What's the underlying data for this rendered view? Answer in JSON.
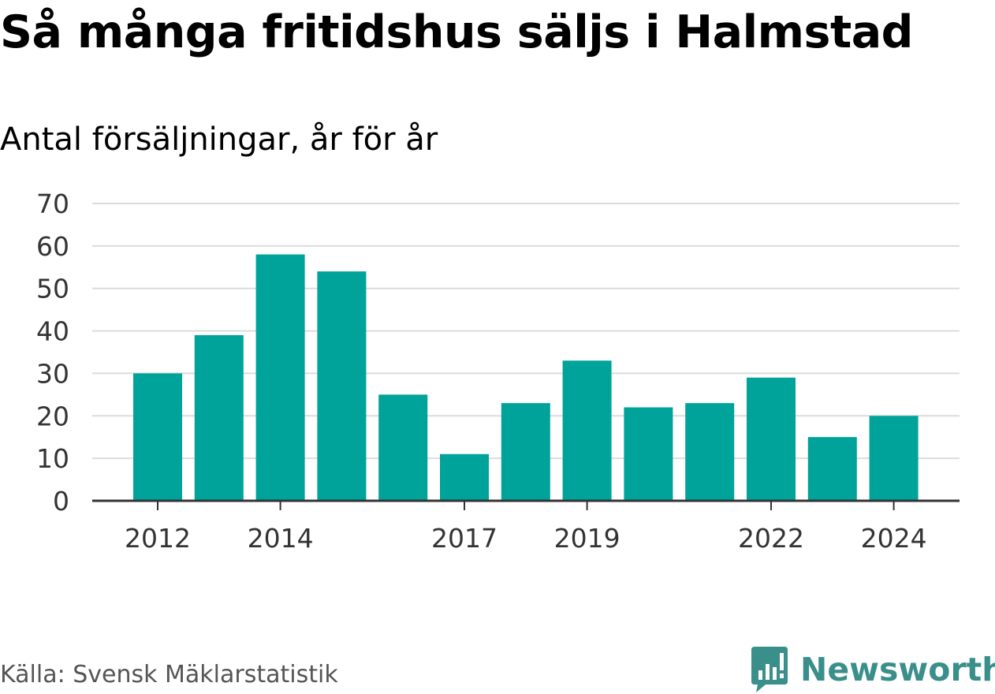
{
  "title": "Så många fritidshus säljs i Halmstad",
  "subtitle": "Antal försäljningar, år för år",
  "source": "Källa: Svensk Mäklarstatistik",
  "brand": "Newsworthy",
  "colors": {
    "bar": "#00a39a",
    "grid": "#dcdcdc",
    "axis": "#333333",
    "brand": "#3a8f8a"
  },
  "chart_data": {
    "type": "bar",
    "categories": [
      "2012",
      "2013",
      "2014",
      "2015",
      "2016",
      "2017",
      "2018",
      "2019",
      "2020",
      "2021",
      "2022",
      "2023",
      "2024"
    ],
    "values": [
      30,
      39,
      58,
      54,
      25,
      11,
      23,
      33,
      22,
      23,
      29,
      15,
      20
    ],
    "x_tick_labels": [
      "2012",
      "2014",
      "2017",
      "2019",
      "2022",
      "2024"
    ],
    "y_ticks": [
      0,
      10,
      20,
      30,
      40,
      50,
      60,
      70
    ],
    "ylim": [
      0,
      70
    ],
    "grid": true,
    "xlabel": "",
    "ylabel": ""
  }
}
